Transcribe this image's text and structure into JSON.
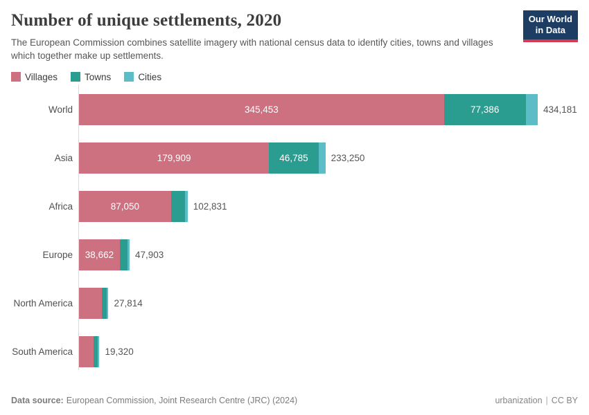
{
  "header": {
    "title": "Number of unique settlements, 2020",
    "subtitle": "The European Commission combines satellite imagery with national census data to identify cities, towns and villages which together make up settlements.",
    "logo": {
      "line1": "Our World",
      "line2": "in Data"
    }
  },
  "colors": {
    "villages": "#cd7080",
    "towns": "#2b9c90",
    "cities": "#5cbdc7",
    "logo_bg": "#1d3d63",
    "logo_stripe": "#d73a50",
    "axis": "#dcdcdc"
  },
  "legend": [
    {
      "label": "Villages",
      "color": "#cd7080"
    },
    {
      "label": "Towns",
      "color": "#2b9c90"
    },
    {
      "label": "Cities",
      "color": "#5cbdc7"
    }
  ],
  "chart_data": {
    "type": "bar",
    "orientation": "horizontal",
    "stacked": true,
    "categories": [
      "World",
      "Asia",
      "Africa",
      "Europe",
      "North America",
      "South America"
    ],
    "series": [
      {
        "name": "Villages",
        "color": "#cd7080",
        "values": [
          345453,
          179909,
          87050,
          38662,
          21700,
          13600
        ]
      },
      {
        "name": "Towns",
        "color": "#2b9c90",
        "values": [
          77386,
          46785,
          13030,
          7270,
          4760,
          4300
        ]
      },
      {
        "name": "Cities",
        "color": "#5cbdc7",
        "values": [
          11342,
          6556,
          2751,
          1971,
          1354,
          1420
        ]
      }
    ],
    "totals": [
      434181,
      233250,
      102831,
      47903,
      27814,
      19320
    ],
    "total_labels": [
      "434,181",
      "233,250",
      "102,831",
      "47,903",
      "27,814",
      "19,320"
    ],
    "segment_labels": [
      [
        "345,453",
        "77,386",
        ""
      ],
      [
        "179,909",
        "46,785",
        ""
      ],
      [
        "87,050",
        "",
        ""
      ],
      [
        "38,662",
        "",
        ""
      ],
      [
        "",
        "",
        ""
      ],
      [
        "",
        "",
        ""
      ]
    ],
    "xmax": 434181,
    "grid": false,
    "legend_position": "top"
  },
  "footer": {
    "source_label": "Data source:",
    "source_text": "European Commission, Joint Research Centre (JRC) (2024)",
    "link_text": "urbanization",
    "separator": "|",
    "license_text": "CC BY"
  }
}
